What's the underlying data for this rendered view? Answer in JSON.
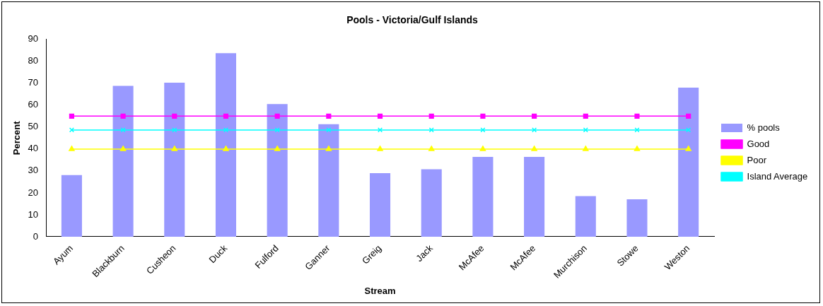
{
  "chart_data": {
    "type": "bar",
    "title": "Pools - Victoria/Gulf Islands",
    "xlabel": "Stream",
    "ylabel": "Percent",
    "categories": [
      "Ayum",
      "Blackburn",
      "Cusheon",
      "Duck",
      "Fulford",
      "Ganner",
      "Greig",
      "Jack",
      "McAfee",
      "McAfee",
      "Murchison",
      "Stowe",
      "Weston"
    ],
    "series": [
      {
        "name": "% pools",
        "color": "#9999ff",
        "values": [
          28.1,
          68.8,
          70.3,
          83.7,
          60.5,
          51.3,
          29.0,
          30.8,
          36.4,
          36.4,
          18.5,
          17.1,
          68.0
        ]
      },
      {
        "name": "Good",
        "type": "line",
        "marker": "square",
        "color": "#ff00ff",
        "values": [
          55,
          55,
          55,
          55,
          55,
          55,
          55,
          55,
          55,
          55,
          55,
          55,
          55
        ]
      },
      {
        "name": "Poor",
        "type": "line",
        "marker": "triangle",
        "color": "#ffff00",
        "values": [
          40,
          40,
          40,
          40,
          40,
          40,
          40,
          40,
          40,
          40,
          40,
          40,
          40
        ]
      },
      {
        "name": "Island Average",
        "type": "line",
        "marker": "cross",
        "color": "#00ffff",
        "values": [
          48.7,
          48.7,
          48.7,
          48.7,
          48.7,
          48.7,
          48.7,
          48.7,
          48.7,
          48.7,
          48.7,
          48.7,
          48.7
        ]
      }
    ],
    "ylim": [
      0,
      90
    ],
    "yticks": [
      0,
      10,
      20,
      30,
      40,
      50,
      60,
      70,
      80,
      90
    ],
    "grid": false,
    "legend": "right"
  }
}
